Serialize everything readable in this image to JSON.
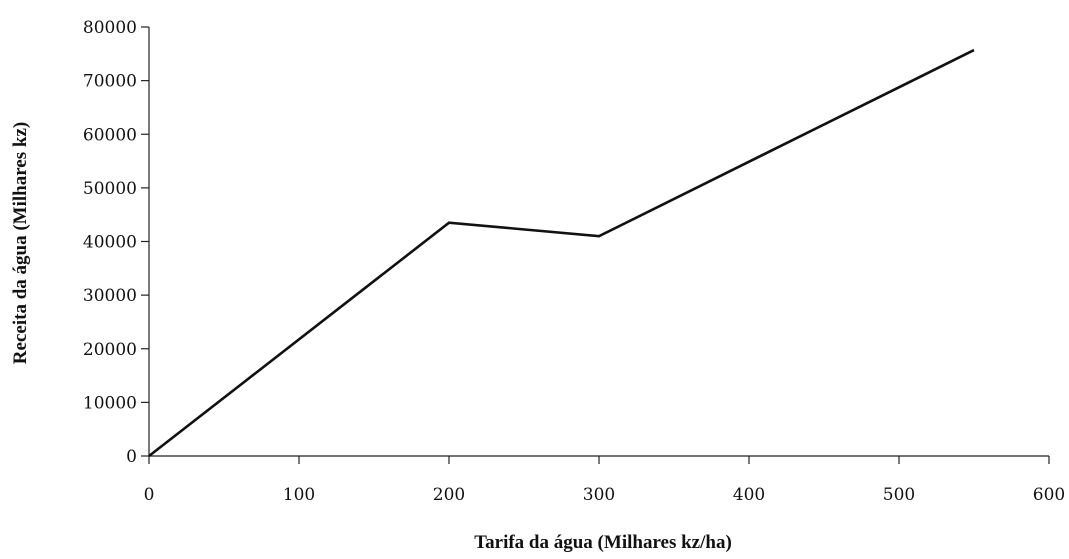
{
  "chart_data": {
    "type": "line",
    "xlabel": "Tarifa da água (Milhares kz/ha)",
    "ylabel": "Receita da água (Milhares kz)",
    "xlim": [
      0,
      600
    ],
    "ylim": [
      0,
      80000
    ],
    "xticks": [
      0,
      100,
      200,
      300,
      400,
      500,
      600
    ],
    "yticks": [
      0,
      10000,
      20000,
      30000,
      40000,
      50000,
      60000,
      70000,
      80000
    ],
    "grid": false,
    "series": [
      {
        "x": [
          0,
          200,
          300,
          550
        ],
        "y": [
          0,
          43500,
          41000,
          75700
        ]
      }
    ]
  }
}
